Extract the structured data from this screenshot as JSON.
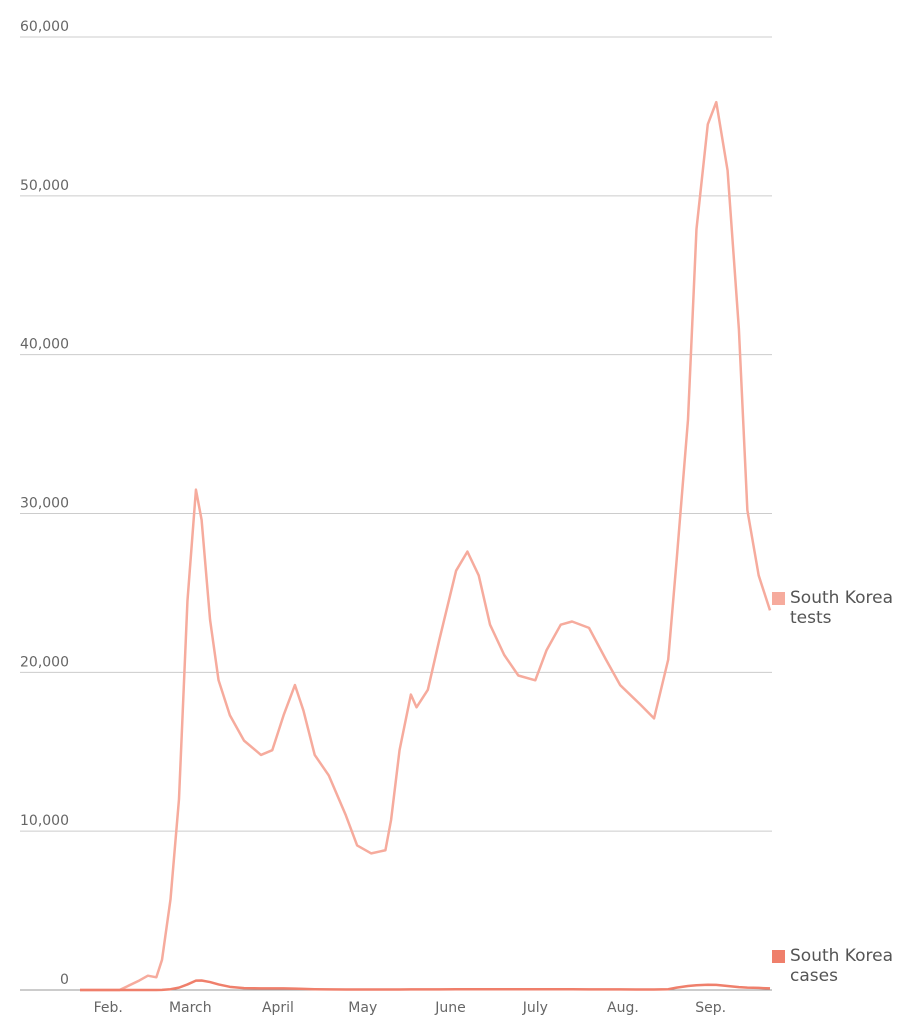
{
  "chart_data": {
    "type": "line",
    "x": [
      0,
      14,
      21,
      24,
      27,
      29,
      32,
      35,
      38,
      41,
      43,
      46,
      49,
      53,
      58,
      64,
      68,
      72,
      76,
      79,
      83,
      88,
      94,
      98,
      103,
      108,
      110,
      113,
      117,
      119,
      123,
      127,
      133,
      137,
      141,
      145,
      150,
      155,
      161,
      165,
      170,
      174,
      180,
      186,
      191,
      198,
      203,
      208,
      211,
      215,
      218,
      222,
      225,
      229,
      233,
      236,
      240,
      244
    ],
    "series": [
      {
        "name": "South Korea tests",
        "color": "#f6ab9d",
        "values": [
          0,
          0,
          600,
          900,
          800,
          1900,
          5700,
          12000,
          24500,
          31500,
          29600,
          23300,
          19500,
          17300,
          15700,
          14800,
          15100,
          17300,
          19200,
          17600,
          14800,
          13500,
          11000,
          9100,
          8600,
          8800,
          10700,
          15100,
          18600,
          17800,
          18900,
          22000,
          26400,
          27600,
          26100,
          23000,
          21100,
          19800,
          19500,
          21400,
          23000,
          23200,
          22800,
          20800,
          19200,
          18000,
          17100,
          20800,
          27100,
          35900,
          47900,
          54500,
          55900,
          51600,
          41600,
          30200,
          26100,
          23900
        ]
      },
      {
        "name": "South Korea cases",
        "color": "#ef7f6b",
        "values": [
          0,
          0,
          0,
          0,
          0,
          10,
          50,
          150,
          350,
          590,
          600,
          500,
          350,
          200,
          120,
          100,
          100,
          100,
          90,
          70,
          50,
          40,
          30,
          30,
          30,
          30,
          30,
          30,
          40,
          40,
          40,
          40,
          50,
          50,
          50,
          50,
          50,
          50,
          50,
          50,
          50,
          50,
          40,
          40,
          40,
          30,
          30,
          50,
          150,
          250,
          300,
          330,
          320,
          250,
          180,
          150,
          130,
          100
        ]
      }
    ],
    "xlim": [
      0,
      244
    ],
    "xticks": [
      {
        "value": 10,
        "label": "Feb."
      },
      {
        "value": 39,
        "label": "March"
      },
      {
        "value": 70,
        "label": "April"
      },
      {
        "value": 100,
        "label": "May"
      },
      {
        "value": 131,
        "label": "June"
      },
      {
        "value": 161,
        "label": "July"
      },
      {
        "value": 192,
        "label": "Aug."
      },
      {
        "value": 223,
        "label": "Sep."
      }
    ],
    "ylim": [
      0,
      60000
    ],
    "yticks": [
      {
        "value": 0,
        "label": "0"
      },
      {
        "value": 10000,
        "label": "10,000"
      },
      {
        "value": 20000,
        "label": "20,000"
      },
      {
        "value": 30000,
        "label": "30,000"
      },
      {
        "value": 40000,
        "label": "40,000"
      },
      {
        "value": 50000,
        "label": "50,000"
      },
      {
        "value": 60000,
        "label": "60,000"
      }
    ],
    "grid": true
  }
}
